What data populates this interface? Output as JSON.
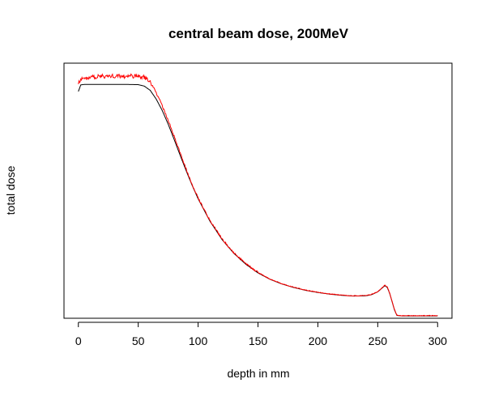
{
  "chart_data": {
    "type": "line",
    "title": "central beam dose, 200MeV",
    "xlabel": "depth in mm",
    "ylabel": "total dose",
    "xlim": [
      -12,
      312
    ],
    "ylim": [
      0,
      1.08
    ],
    "xticks": [
      0,
      50,
      100,
      150,
      200,
      250,
      300
    ],
    "yticks_labeled": false,
    "grid": false,
    "legend": "none",
    "series": [
      {
        "color": "#000000",
        "style": "smooth",
        "x": [
          0,
          2,
          5,
          10,
          20,
          30,
          40,
          50,
          55,
          60,
          65,
          70,
          75,
          80,
          85,
          90,
          95,
          100,
          110,
          120,
          130,
          140,
          150,
          160,
          170,
          180,
          190,
          200,
          210,
          220,
          230,
          240,
          245,
          250,
          253,
          256,
          258,
          260,
          262,
          264,
          266,
          270,
          280,
          290,
          300
        ],
        "y": [
          0.96,
          0.988,
          0.99,
          0.99,
          0.99,
          0.99,
          0.99,
          0.989,
          0.983,
          0.965,
          0.928,
          0.88,
          0.822,
          0.757,
          0.69,
          0.625,
          0.563,
          0.506,
          0.41,
          0.333,
          0.274,
          0.228,
          0.192,
          0.165,
          0.145,
          0.13,
          0.118,
          0.109,
          0.102,
          0.097,
          0.094,
          0.095,
          0.1,
          0.112,
          0.125,
          0.138,
          0.13,
          0.105,
          0.07,
          0.035,
          0.012,
          0.01,
          0.01,
          0.01,
          0.01
        ]
      },
      {
        "color": "#ff0000",
        "style": "noisy",
        "x": [
          0,
          2,
          5,
          10,
          20,
          30,
          40,
          45,
          50,
          55,
          58,
          60,
          62,
          65,
          70,
          75,
          80,
          85,
          90,
          95,
          100,
          110,
          120,
          130,
          140,
          150,
          160,
          170,
          180,
          190,
          200,
          210,
          220,
          230,
          240,
          245,
          250,
          253,
          256,
          258,
          260,
          262,
          264,
          266,
          270,
          280,
          290,
          300
        ],
        "y": [
          1.0,
          1.01,
          1.015,
          1.02,
          1.025,
          1.025,
          1.025,
          1.025,
          1.025,
          1.02,
          1.01,
          1.0,
          0.985,
          0.955,
          0.9,
          0.838,
          0.77,
          0.7,
          0.632,
          0.568,
          0.51,
          0.413,
          0.336,
          0.276,
          0.23,
          0.194,
          0.166,
          0.146,
          0.131,
          0.119,
          0.11,
          0.103,
          0.098,
          0.095,
          0.096,
          0.101,
          0.113,
          0.126,
          0.14,
          0.132,
          0.106,
          0.071,
          0.036,
          0.013,
          0.011,
          0.011,
          0.011,
          0.011
        ]
      }
    ]
  }
}
